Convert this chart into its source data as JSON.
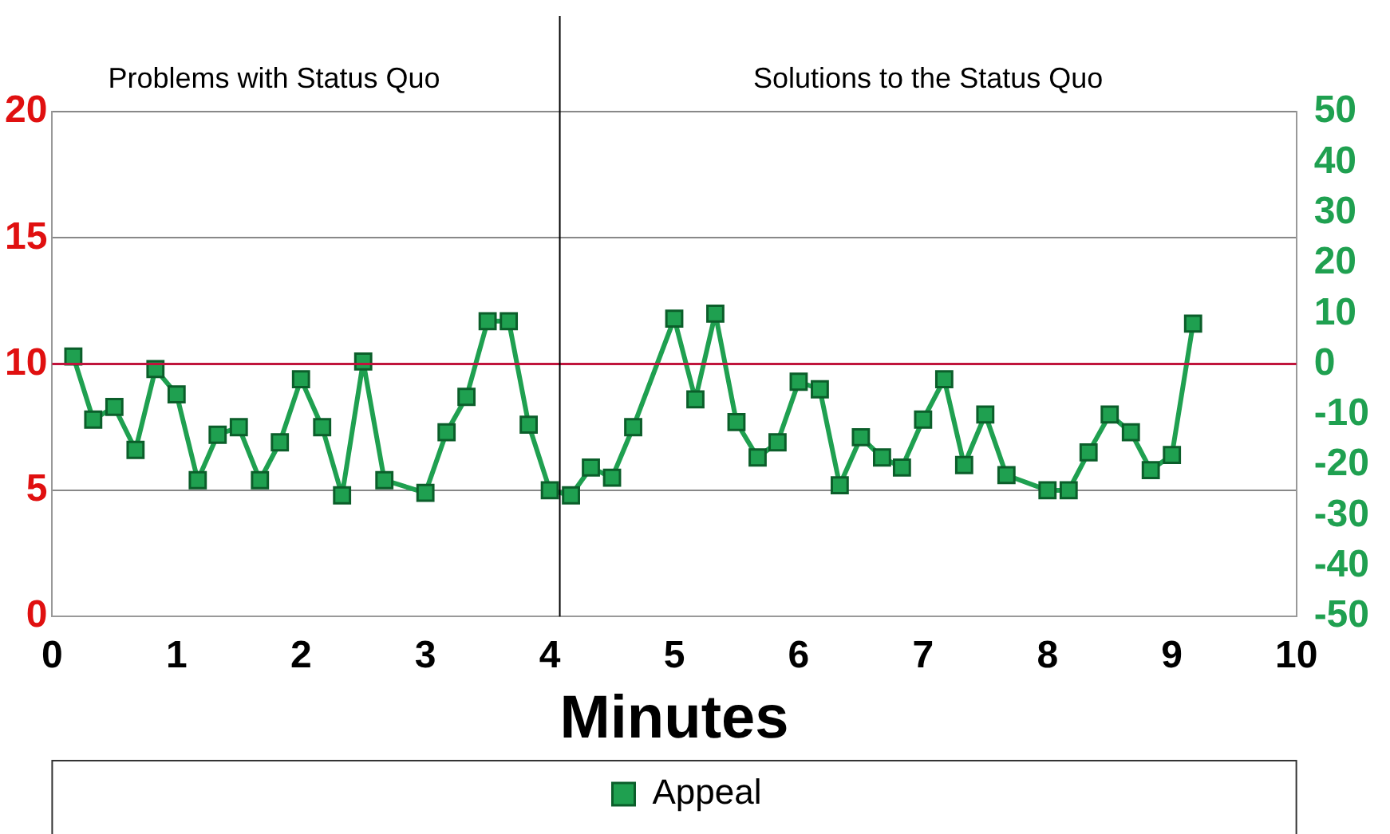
{
  "chart_data": {
    "type": "line",
    "xlabel": "Minutes",
    "annotations": [
      "Problems with Status Quo",
      "Solutions to the Status Quo"
    ],
    "xlim": [
      0,
      10
    ],
    "xticks": [
      0,
      1,
      2,
      3,
      4,
      5,
      6,
      7,
      8,
      9,
      10
    ],
    "ylim": [
      0,
      20
    ],
    "yticks": [
      0,
      5,
      10,
      15,
      20
    ],
    "y2lim": [
      -50,
      50
    ],
    "y2ticks": [
      -50,
      -40,
      -30,
      -20,
      -10,
      0,
      10,
      20,
      30,
      40,
      50
    ],
    "grid": "y",
    "legend": "bottom",
    "marker": "square",
    "line_style": "solid",
    "ref_lines": [
      {
        "axis": "y2",
        "value": 0,
        "color": "#c0143c"
      },
      {
        "axis": "x",
        "value": 4.08,
        "color": "#000000"
      }
    ],
    "series": [
      {
        "name": "Appeal",
        "color": "#1fa050",
        "axis": "y2",
        "x": [
          0.17,
          0.33,
          0.5,
          0.67,
          0.83,
          1.0,
          1.17,
          1.33,
          1.5,
          1.67,
          1.83,
          2.0,
          2.17,
          2.33,
          2.5,
          2.67,
          3.0,
          3.17,
          3.33,
          3.5,
          3.67,
          3.83,
          4.0,
          4.17,
          4.33,
          4.5,
          4.67,
          5.0,
          5.17,
          5.33,
          5.5,
          5.67,
          5.83,
          6.0,
          6.17,
          6.33,
          6.5,
          6.67,
          6.83,
          7.0,
          7.17,
          7.33,
          7.5,
          7.67,
          8.0,
          8.17,
          8.33,
          8.5,
          8.67,
          8.83,
          9.0,
          9.17
        ],
        "values": [
          1.5,
          -11,
          -8.5,
          -17,
          -1,
          -6,
          -23,
          -14,
          -12.5,
          -23,
          -15.5,
          -3,
          -12.5,
          -26,
          0.5,
          -23,
          -25.5,
          -13.5,
          -6.5,
          8.5,
          8.5,
          -12,
          -25,
          -26,
          -20.5,
          -22.5,
          -12.5,
          9,
          -7,
          10,
          -11.5,
          -18.5,
          -15.5,
          -3.5,
          -5,
          -24,
          -14.5,
          -18.5,
          -20.5,
          -11,
          -3,
          -20,
          -10,
          -22,
          -25,
          -25,
          -17.5,
          -10,
          -13.5,
          -21,
          -18,
          8
        ]
      }
    ]
  }
}
